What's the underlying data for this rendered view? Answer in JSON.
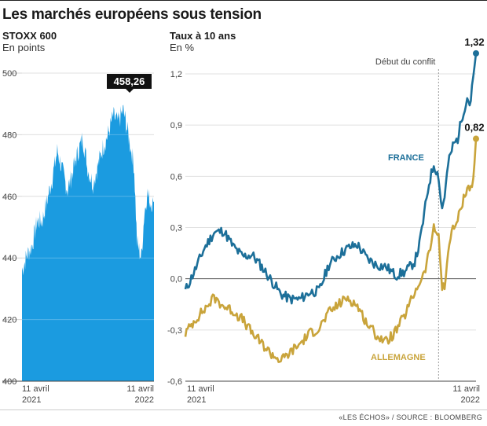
{
  "title": "Les marchés européens sous tension",
  "source": "«LES ÉCHOS» / SOURCE : BLOOMBERG",
  "colors": {
    "stoxx": "#1b9be0",
    "france": "#1c6f99",
    "allemagne": "#c9a43b",
    "label_bg": "#111111"
  },
  "chart_data": [
    {
      "type": "area",
      "title": "STOXX 600",
      "ylabel": "En points",
      "ylim": [
        400,
        500
      ],
      "yticks": [
        "400",
        "420",
        "440",
        "460",
        "480",
        "500"
      ],
      "xticks": [
        {
          "label": "11 avril\n2021",
          "x": 0
        },
        {
          "label": "11 avril\n2022",
          "x": 365
        }
      ],
      "grid": true,
      "last_label": "458,26",
      "series": [
        {
          "x": [
            0,
            14,
            28,
            42,
            56,
            70,
            84,
            98,
            112,
            126,
            140,
            154,
            168,
            182,
            196,
            210,
            224,
            238,
            252,
            266,
            280,
            294,
            310,
            318,
            330,
            338,
            346,
            356,
            365
          ],
          "values": [
            436,
            441,
            444,
            452,
            452,
            459,
            466,
            475,
            468,
            462,
            468,
            474,
            479,
            469,
            464,
            470,
            476,
            480,
            486,
            484,
            488,
            480,
            470,
            445,
            440,
            454,
            461,
            458,
            458.26
          ]
        }
      ]
    },
    {
      "type": "line",
      "title": "Taux à 10 ans",
      "ylabel": "En %",
      "ylim": [
        -0.6,
        1.35
      ],
      "yticks": [
        "-0,6",
        "-0,3",
        "0,0",
        "0,3",
        "0,6",
        "0,9",
        "1,2"
      ],
      "xticks": [
        {
          "label": "11 avril\n2021",
          "x": 0
        },
        {
          "label": "11 avril\n2022",
          "x": 365
        }
      ],
      "zero_line": true,
      "annotation": {
        "label": "Début du conflit",
        "x": 318
      },
      "series": [
        {
          "name": "FRANCE",
          "end_label": "1,32",
          "x": [
            0,
            12,
            24,
            36,
            48,
            60,
            72,
            84,
            96,
            108,
            120,
            132,
            144,
            156,
            168,
            180,
            192,
            204,
            216,
            228,
            240,
            252,
            264,
            276,
            288,
            294,
            300,
            306,
            312,
            318,
            322,
            326,
            330,
            336,
            342,
            348,
            354,
            358,
            362,
            365
          ],
          "values": [
            -0.07,
            0.05,
            0.18,
            0.27,
            0.28,
            0.19,
            0.13,
            0.14,
            0.07,
            -0.01,
            -0.09,
            -0.12,
            -0.12,
            -0.08,
            -0.07,
            0.08,
            0.14,
            0.18,
            0.2,
            0.12,
            0.08,
            0.07,
            0.02,
            0.04,
            0.1,
            0.2,
            0.38,
            0.56,
            0.67,
            0.6,
            0.4,
            0.5,
            0.67,
            0.78,
            0.82,
            0.96,
            1.06,
            1.02,
            1.2,
            1.32
          ]
        },
        {
          "name": "ALLEMAGNE",
          "end_label": "0,82",
          "x": [
            0,
            12,
            24,
            36,
            48,
            60,
            72,
            84,
            96,
            108,
            120,
            132,
            144,
            156,
            168,
            180,
            192,
            204,
            216,
            228,
            240,
            252,
            264,
            276,
            288,
            294,
            300,
            306,
            312,
            318,
            322,
            326,
            330,
            336,
            342,
            348,
            354,
            358,
            362,
            365
          ],
          "values": [
            -0.32,
            -0.24,
            -0.18,
            -0.11,
            -0.16,
            -0.19,
            -0.24,
            -0.32,
            -0.38,
            -0.44,
            -0.48,
            -0.43,
            -0.38,
            -0.32,
            -0.29,
            -0.2,
            -0.15,
            -0.11,
            -0.16,
            -0.26,
            -0.33,
            -0.37,
            -0.31,
            -0.21,
            -0.08,
            -0.02,
            0.03,
            0.15,
            0.29,
            0.26,
            -0.04,
            -0.06,
            0.18,
            0.29,
            0.34,
            0.45,
            0.54,
            0.52,
            0.6,
            0.82
          ]
        }
      ]
    }
  ]
}
